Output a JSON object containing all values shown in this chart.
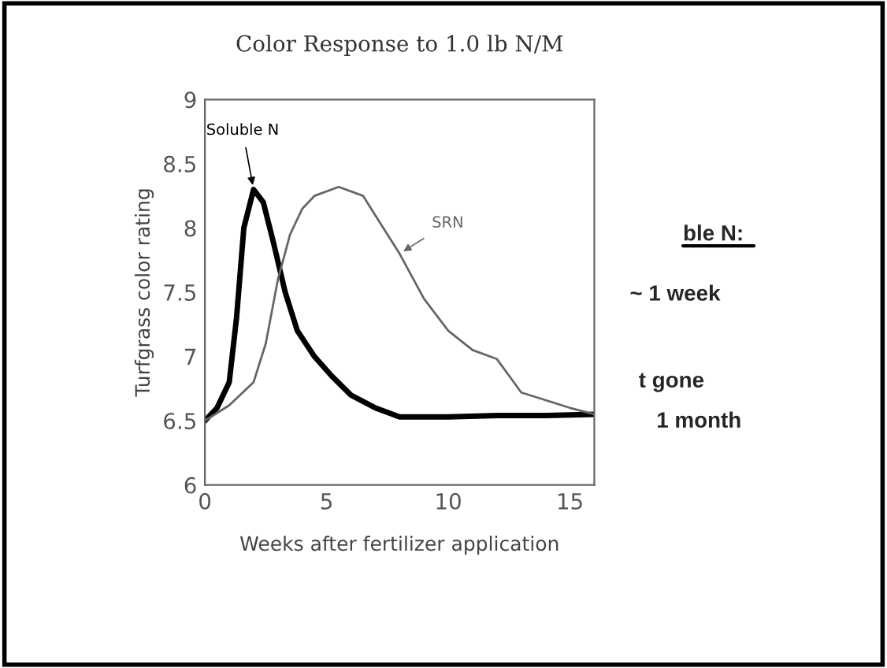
{
  "chart_data": {
    "type": "line",
    "title": "Color Response to 1.0 lb N/M",
    "xlabel": "Weeks after fertilizer application",
    "ylabel": "Turfgrass color rating",
    "xlim": [
      0,
      16
    ],
    "ylim": [
      6,
      9
    ],
    "xticks": [
      0,
      5,
      10,
      15
    ],
    "yticks": [
      6,
      6.5,
      7,
      7.5,
      8,
      8.5,
      9
    ],
    "grid": false,
    "legend": false,
    "marker": "none",
    "line_style": "solid",
    "series": [
      {
        "name": "Soluble N",
        "color": "#000000",
        "x": [
          0,
          0.5,
          1,
          1.3,
          1.6,
          2,
          2.4,
          2.8,
          3.3,
          3.8,
          4.5,
          5.2,
          6,
          7,
          8,
          10,
          12,
          14,
          16
        ],
        "values": [
          6.5,
          6.6,
          6.8,
          7.3,
          8.0,
          8.3,
          8.2,
          7.9,
          7.5,
          7.2,
          7.0,
          6.85,
          6.7,
          6.6,
          6.53,
          6.53,
          6.54,
          6.54,
          6.55
        ]
      },
      {
        "name": "SRN",
        "color": "#666666",
        "x": [
          0,
          1,
          2,
          2.5,
          3,
          3.5,
          4,
          4.5,
          5.5,
          6.5,
          7,
          8,
          9,
          10,
          11,
          12,
          12.5,
          13,
          14,
          15,
          16
        ],
        "values": [
          6.5,
          6.62,
          6.8,
          7.1,
          7.6,
          7.95,
          8.15,
          8.25,
          8.32,
          8.25,
          8.1,
          7.8,
          7.45,
          7.2,
          7.05,
          6.98,
          6.85,
          6.72,
          6.66,
          6.6,
          6.55
        ]
      }
    ],
    "annotations": [
      "ble N:",
      "~ 1 week",
      "t gone",
      "1 month"
    ]
  }
}
